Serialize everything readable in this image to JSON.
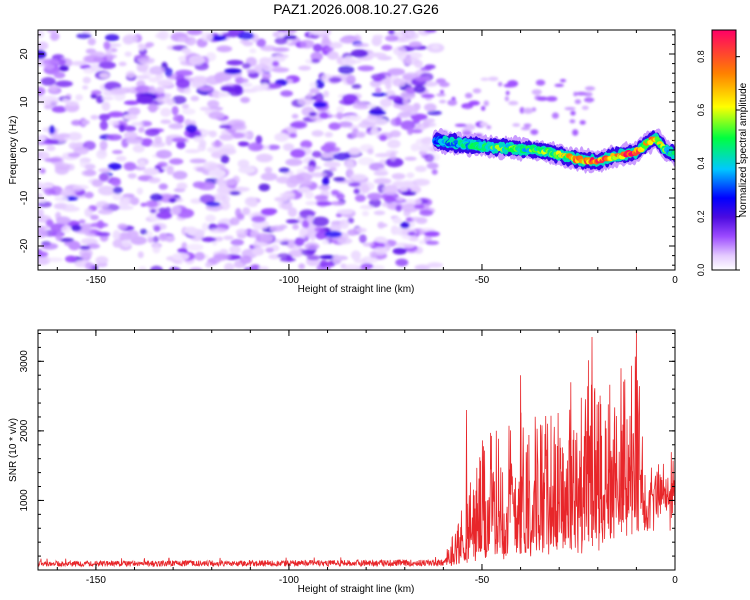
{
  "title": "PAZ1.2026.008.10.27.G26",
  "chart_data": [
    {
      "type": "heatmap",
      "title": "PAZ1.2026.008.10.27.G26",
      "xlabel": "Height of straight line (km)",
      "ylabel": "Frequency (Hz)",
      "xlim": [
        -165,
        0
      ],
      "ylim": [
        -25,
        25
      ],
      "xticks": [
        -150,
        -100,
        -50,
        0
      ],
      "yticks": [
        -20,
        -10,
        0,
        10,
        20
      ],
      "xtick_labels": [
        "-150",
        "-100",
        "-50",
        "0"
      ],
      "ytick_labels": [
        "-20",
        "-10",
        "0",
        "10",
        "20"
      ],
      "noise_region_x": [
        -165,
        -63
      ],
      "noise_amplitude_range": [
        0.05,
        0.25
      ],
      "signal_ridge": {
        "x": [
          -62,
          -55,
          -50,
          -45,
          -40,
          -35,
          -30,
          -25,
          -20,
          -15,
          -10,
          -8,
          -5,
          -3,
          0
        ],
        "frequency": [
          2.0,
          1.2,
          0.8,
          0.5,
          0.2,
          0.0,
          -1.0,
          -2.0,
          -2.3,
          -1.2,
          -0.5,
          1.0,
          2.5,
          0.5,
          -1.0
        ],
        "amplitude": [
          0.35,
          0.4,
          0.45,
          0.5,
          0.45,
          0.5,
          0.55,
          0.7,
          0.85,
          0.65,
          0.9,
          0.6,
          0.7,
          0.5,
          0.4
        ]
      },
      "colorbar": {
        "label": "Normalized spectral amplitude",
        "range": [
          0,
          0.9
        ],
        "ticks": [
          "0.0",
          "0.2",
          "0.4",
          "0.6",
          "0.8"
        ],
        "colors": [
          "#ffffff",
          "#e4caff",
          "#9c4bff",
          "#4b0be0",
          "#0000ff",
          "#00c8ff",
          "#00ff40",
          "#ffff00",
          "#ff8000",
          "#ff0066"
        ]
      }
    },
    {
      "type": "line",
      "xlabel": "Height of straight line (km)",
      "ylabel": "SNR (10 * v/v)",
      "xlim": [
        -165,
        0
      ],
      "ylim": [
        0,
        3450
      ],
      "xticks": [
        -150,
        -100,
        -50,
        0
      ],
      "yticks": [
        1000,
        2000,
        3000
      ],
      "xtick_labels": [
        "-150",
        "-100",
        "-50",
        "0"
      ],
      "ytick_labels": [
        "1000",
        "2000",
        "3000"
      ],
      "line_color": "#e8262a",
      "envelope": {
        "x": [
          -165,
          -60,
          -57,
          -50,
          -40,
          -30,
          -25,
          -22,
          -15,
          -10,
          -8,
          -5,
          -3,
          0
        ],
        "baseline": [
          90,
          100,
          120,
          250,
          400,
          550,
          450,
          550,
          900,
          950,
          1000,
          1200,
          1300,
          1300
        ],
        "peak": [
          130,
          150,
          700,
          1900,
          2500,
          2350,
          2500,
          3350,
          2700,
          3450,
          2000,
          1800,
          1700,
          1800
        ]
      },
      "notable_peaks": [
        {
          "x": -54,
          "y": 2300
        },
        {
          "x": -40,
          "y": 2800
        },
        {
          "x": -27,
          "y": 2700
        },
        {
          "x": -21.5,
          "y": 3350
        },
        {
          "x": -14,
          "y": 2900
        },
        {
          "x": -10,
          "y": 3450
        }
      ]
    }
  ]
}
